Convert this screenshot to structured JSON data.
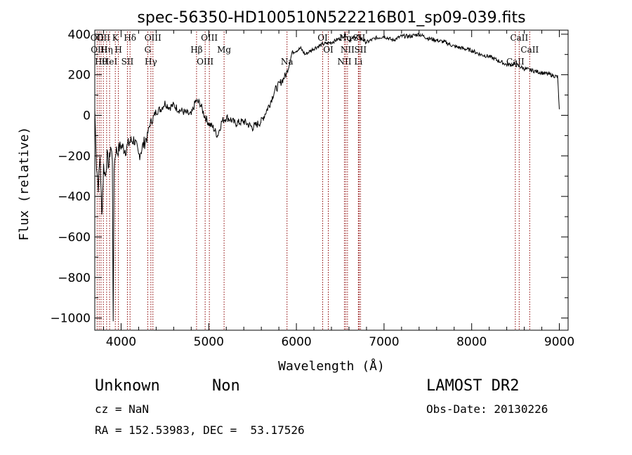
{
  "chart_data": {
    "type": "line",
    "title": "spec-56350-HD100510N522216B01_sp09-039.fits",
    "xlabel": "Wavelength (Å)",
    "ylabel": "Flux (relative)",
    "xlim": [
      3700,
      9100
    ],
    "ylim": [
      -1060,
      420
    ],
    "x_ticks": [
      4000,
      5000,
      6000,
      7000,
      8000,
      9000
    ],
    "y_ticks": [
      -1000,
      -800,
      -600,
      -400,
      -200,
      0,
      200,
      400
    ],
    "grid": false,
    "line_color": "#000000",
    "marker_color": "#8b0000",
    "series": [
      {
        "x": [
          3700,
          3720,
          3740,
          3760,
          3780,
          3790,
          3800,
          3820,
          3840,
          3860,
          3880,
          3900,
          3910,
          3920,
          3940,
          3960,
          3980,
          4000,
          4050,
          4100,
          4150,
          4200,
          4250,
          4300,
          4330,
          4360,
          4400,
          4450,
          4500,
          4550,
          4600,
          4650,
          4700,
          4750,
          4800,
          4850,
          4900,
          4950,
          5000,
          5050,
          5100,
          5150,
          5200,
          5250,
          5300,
          5400,
          5500,
          5600,
          5700,
          5750,
          5800,
          5850,
          5880,
          5900,
          5930,
          5950,
          6000,
          6050,
          6100,
          6200,
          6300,
          6400,
          6500,
          6560,
          6600,
          6700,
          6800,
          6900,
          7000,
          7100,
          7200,
          7300,
          7400,
          7500,
          7600,
          7700,
          7800,
          7900,
          8000,
          8100,
          8200,
          8300,
          8400,
          8500,
          8600,
          8700,
          8800,
          8900,
          8980,
          9000
        ],
        "values": [
          30,
          -250,
          -350,
          -200,
          -500,
          -380,
          -250,
          -300,
          -200,
          -250,
          -150,
          -210,
          -1050,
          -250,
          -170,
          -180,
          -160,
          -150,
          -170,
          -130,
          -120,
          -200,
          -150,
          -100,
          -40,
          -20,
          20,
          30,
          60,
          40,
          50,
          30,
          20,
          10,
          0,
          70,
          60,
          0,
          -40,
          -60,
          -100,
          -30,
          -10,
          -20,
          -40,
          -30,
          -60,
          -30,
          60,
          120,
          150,
          180,
          200,
          220,
          270,
          310,
          320,
          330,
          300,
          330,
          350,
          360,
          380,
          400,
          370,
          390,
          360,
          380,
          390,
          370,
          390,
          390,
          400,
          380,
          370,
          360,
          340,
          330,
          320,
          300,
          290,
          270,
          250,
          250,
          230,
          220,
          210,
          200,
          190,
          30
        ]
      }
    ],
    "markers": [
      {
        "x": 3727,
        "label": "OII"
      },
      {
        "x": 3750,
        "label": "OIII"
      },
      {
        "x": 3771,
        "label": "Hθ"
      },
      {
        "x": 3798,
        "label": "OII"
      },
      {
        "x": 3835,
        "label": "Hη"
      },
      {
        "x": 3869,
        "label": "HeI"
      },
      {
        "x": 3934,
        "label": "K"
      },
      {
        "x": 3969,
        "label": "H"
      },
      {
        "x": 4072,
        "label": "SII"
      },
      {
        "x": 4102,
        "label": "Hδ"
      },
      {
        "x": 4304,
        "label": "G"
      },
      {
        "x": 4340,
        "label": "Hγ"
      },
      {
        "x": 4363,
        "label": "OIII"
      },
      {
        "x": 4861,
        "label": "Hβ"
      },
      {
        "x": 4959,
        "label": "OIII"
      },
      {
        "x": 5007,
        "label": "OIII"
      },
      {
        "x": 5175,
        "label": "Mg"
      },
      {
        "x": 5893,
        "label": "Na"
      },
      {
        "x": 6300,
        "label": "OI"
      },
      {
        "x": 6364,
        "label": "OI"
      },
      {
        "x": 6548,
        "label": "NII"
      },
      {
        "x": 6563,
        "label": "Hα"
      },
      {
        "x": 6583,
        "label": "NII"
      },
      {
        "x": 6707,
        "label": "Li"
      },
      {
        "x": 6716,
        "label": "SII"
      },
      {
        "x": 6731,
        "label": "SII"
      },
      {
        "x": 8498,
        "label": "CaII"
      },
      {
        "x": 8542,
        "label": "CaII"
      },
      {
        "x": 8662,
        "label": "CaII"
      }
    ]
  },
  "info": {
    "object_class": "Unknown",
    "subclass": "Non",
    "survey": "LAMOST DR2",
    "cz": "cz = NaN",
    "obs_date": "Obs-Date: 20130226",
    "coords": "RA = 152.53983, DEC =  53.17526"
  }
}
